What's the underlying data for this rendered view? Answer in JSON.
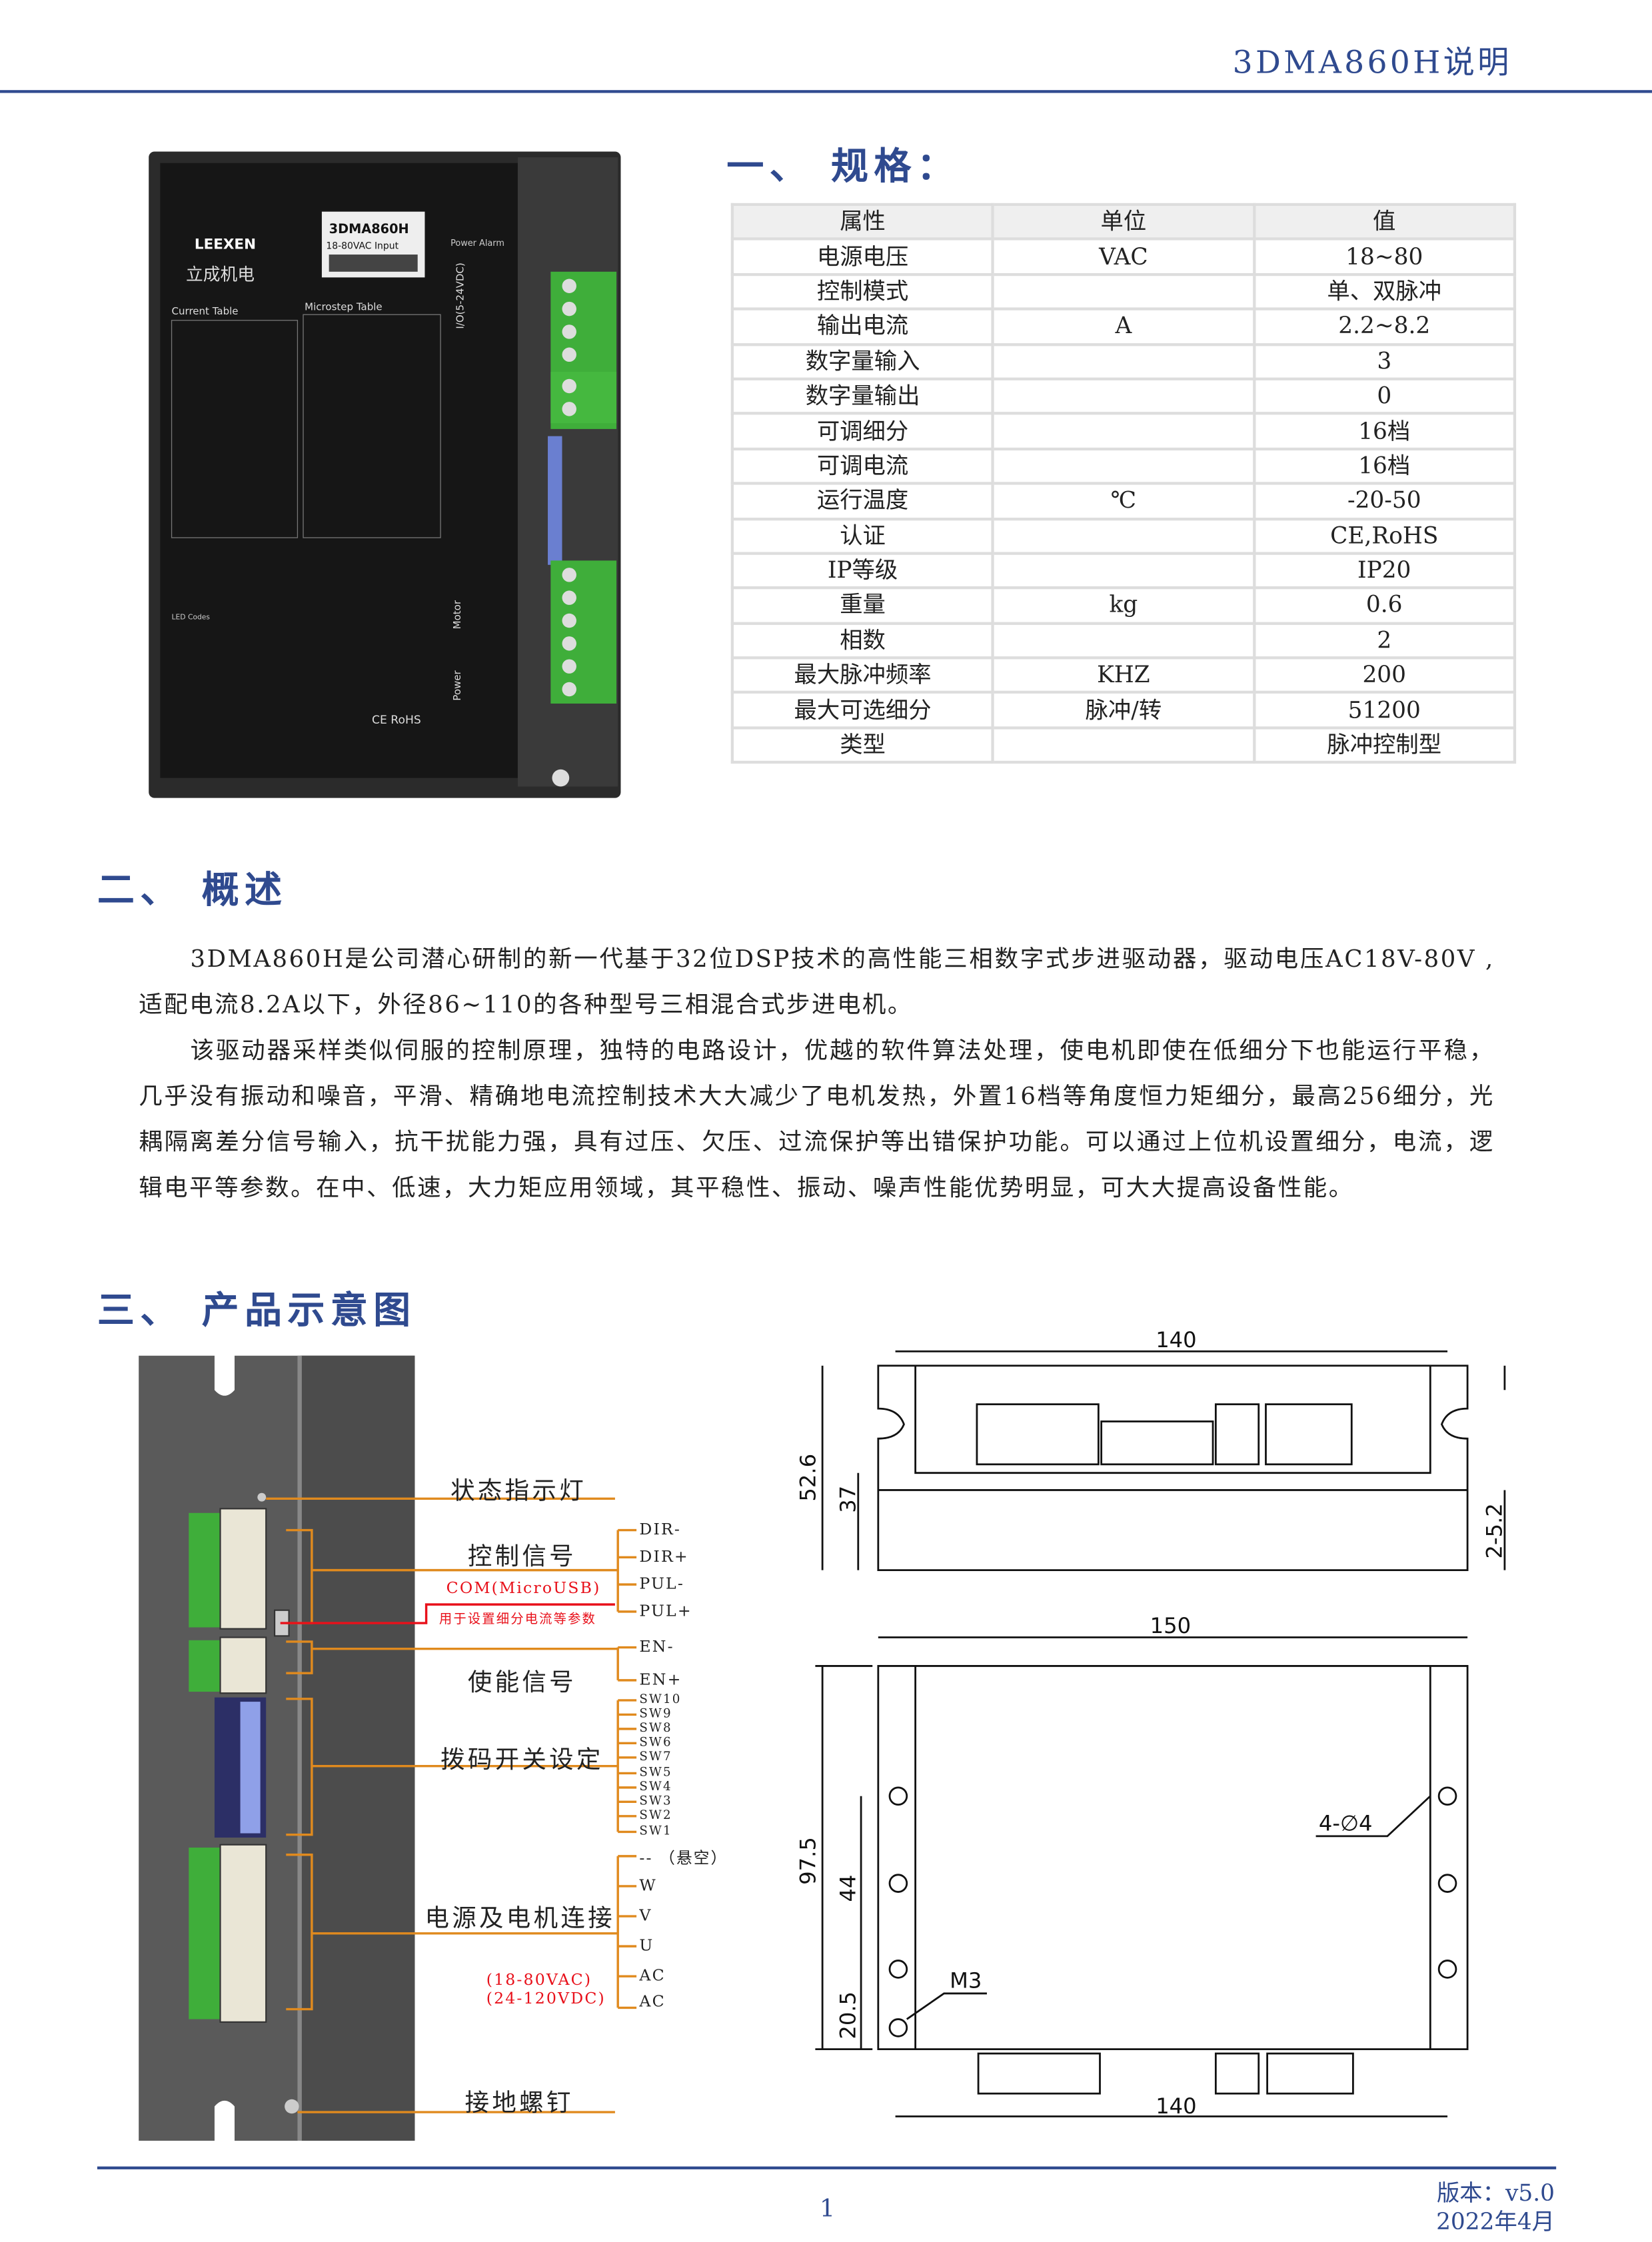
{
  "header": {
    "title": "3DMA860H说明"
  },
  "product_photo": {
    "brand": "LEEXEN",
    "brand_cn": "立成机电",
    "model": "3DMA860H",
    "input": "18-80VAC Input",
    "current_table": "Current Table",
    "microstep_table": "Microstep Table",
    "io_label": "I/O(5-24VDC)",
    "io_pins": [
      "DIR-",
      "DIR+",
      "PUL-",
      "PUL+",
      "EN-",
      "EN+"
    ],
    "motor_label": "Motor",
    "power_label": "Power",
    "motor_pins": [
      "W",
      "V",
      "U",
      "AC",
      "AC"
    ],
    "switches": [
      "SW10",
      "SW9",
      "SW8",
      "SW7",
      "SW6",
      "SW5",
      "SW4",
      "SW3",
      "SW2",
      "SW1"
    ],
    "status": "Power Alarm",
    "led_codes": "LED Codes",
    "cert": "CE RoHS"
  },
  "spec": {
    "heading": "一、 规格：",
    "columns": [
      "属性",
      "单位",
      "值"
    ],
    "rows": [
      [
        "电源电压",
        "VAC",
        "18~80"
      ],
      [
        "控制模式",
        "",
        "单、双脉冲"
      ],
      [
        "输出电流",
        "A",
        "2.2~8.2"
      ],
      [
        "数字量输入",
        "",
        "3"
      ],
      [
        "数字量输出",
        "",
        "0"
      ],
      [
        "可调细分",
        "",
        "16档"
      ],
      [
        "可调电流",
        "",
        "16档"
      ],
      [
        "运行温度",
        "℃",
        "-20-50"
      ],
      [
        "认证",
        "",
        "CE,RoHS"
      ],
      [
        "IP等级",
        "",
        "IP20"
      ],
      [
        "重量",
        "kg",
        "0.6"
      ],
      [
        "相数",
        "",
        "2"
      ],
      [
        "最大脉冲频率",
        "KHZ",
        "200"
      ],
      [
        "最大可选细分",
        "脉冲/转",
        "51200"
      ],
      [
        "类型",
        "",
        "脉冲控制型"
      ]
    ]
  },
  "overview": {
    "heading": "二、 概述",
    "paragraphs": [
      "3DMA860H是公司潜心研制的新一代基于32位DSP技术的高性能三相数字式步进驱动器，驱动电压AC18V-80V ,适配电流8.2A以下，外径86~110的各种型号三相混合式步进电机。",
      "该驱动器采样类似伺服的控制原理，独特的电路设计，优越的软件算法处理，使电机即使在低细分下也能运行平稳，几乎没有振动和噪音，平滑、精确地电流控制技术大大减少了电机发热，外置16档等角度恒力矩细分，最高256细分，光耦隔离差分信号输入，抗干扰能力强，具有过压、欠压、过流保护等出错保护功能。可以通过上位机设置细分，电流，逻辑电平等参数。在中、低速，大力矩应用领域，其平稳性、振动、噪声性能优势明显，可大大提高设备性能。"
    ]
  },
  "diagram": {
    "heading": "三、 产品示意图",
    "labels": {
      "status_led": "状态指示灯",
      "control": "控制信号",
      "com": "COM(MicroUSB)",
      "com_note": "用于设置细分电流等参数",
      "enable": "使能信号",
      "dip": "拨码开关设定",
      "power_motor": "电源及电机连接",
      "voltage_ac": "(18-80VAC)",
      "voltage_dc": "(24-120VDC)",
      "ground": "接地螺钉"
    },
    "control_pins": [
      "DIR-",
      "DIR+",
      "PUL-",
      "PUL+"
    ],
    "enable_pins": [
      "EN-",
      "EN+"
    ],
    "dip_pins": [
      "SW10",
      "SW9",
      "SW8",
      "SW6",
      "SW7",
      "SW5",
      "SW4",
      "SW3",
      "SW2",
      "SW1"
    ],
    "power_pins": [
      "--  （悬空）",
      "W",
      "V",
      "U",
      "AC",
      "AC"
    ],
    "accent": "#e08a1e"
  },
  "dimensions": {
    "top_width": "140",
    "top_height": "52.6",
    "top_inner": "37",
    "top_flange": "2-5.2",
    "bottom_width": "150",
    "bottom_height": "97.5",
    "bottom_mid": "44",
    "bottom_low": "20.5",
    "holes": "4-∅4",
    "screw": "M3",
    "bottom_lower_width": "140"
  },
  "footer": {
    "page": "1",
    "version": "版本：v5.0",
    "date": "2022年4月"
  }
}
